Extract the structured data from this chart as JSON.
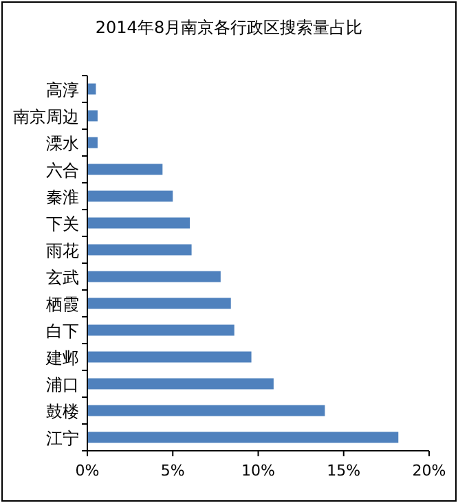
{
  "chart_data": {
    "type": "bar",
    "orientation": "horizontal",
    "title": "2014年8月南京各行政区搜索量占比",
    "categories": [
      "高淳",
      "南京周边",
      "溧水",
      "六合",
      "秦淮",
      "下关",
      "雨花",
      "玄武",
      "栖霞",
      "白下",
      "建邺",
      "浦口",
      "鼓楼",
      "江宁"
    ],
    "values": [
      0.5,
      0.6,
      0.6,
      4.4,
      5.0,
      6.0,
      6.1,
      7.8,
      8.4,
      8.6,
      9.6,
      10.9,
      13.9,
      18.2
    ],
    "color": "#4f81bd",
    "xlim": [
      0,
      20
    ],
    "xticks": [
      {
        "value": 0,
        "label": "0%"
      },
      {
        "value": 5,
        "label": "5%"
      },
      {
        "value": 10,
        "label": "10%"
      },
      {
        "value": 15,
        "label": "15%"
      },
      {
        "value": 20,
        "label": "20%"
      }
    ],
    "grid": false
  }
}
